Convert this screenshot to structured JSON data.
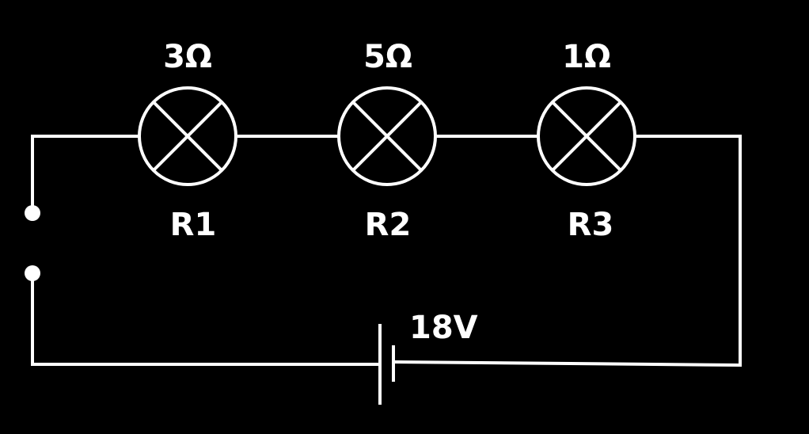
{
  "resistors": [
    {
      "name": "R1",
      "value": "3Ω"
    },
    {
      "name": "R2",
      "value": "5Ω"
    },
    {
      "name": "R3",
      "value": "1Ω"
    }
  ],
  "battery": {
    "voltage": "18V"
  },
  "colors": {
    "background": "#000000",
    "stroke": "#ffffff"
  }
}
